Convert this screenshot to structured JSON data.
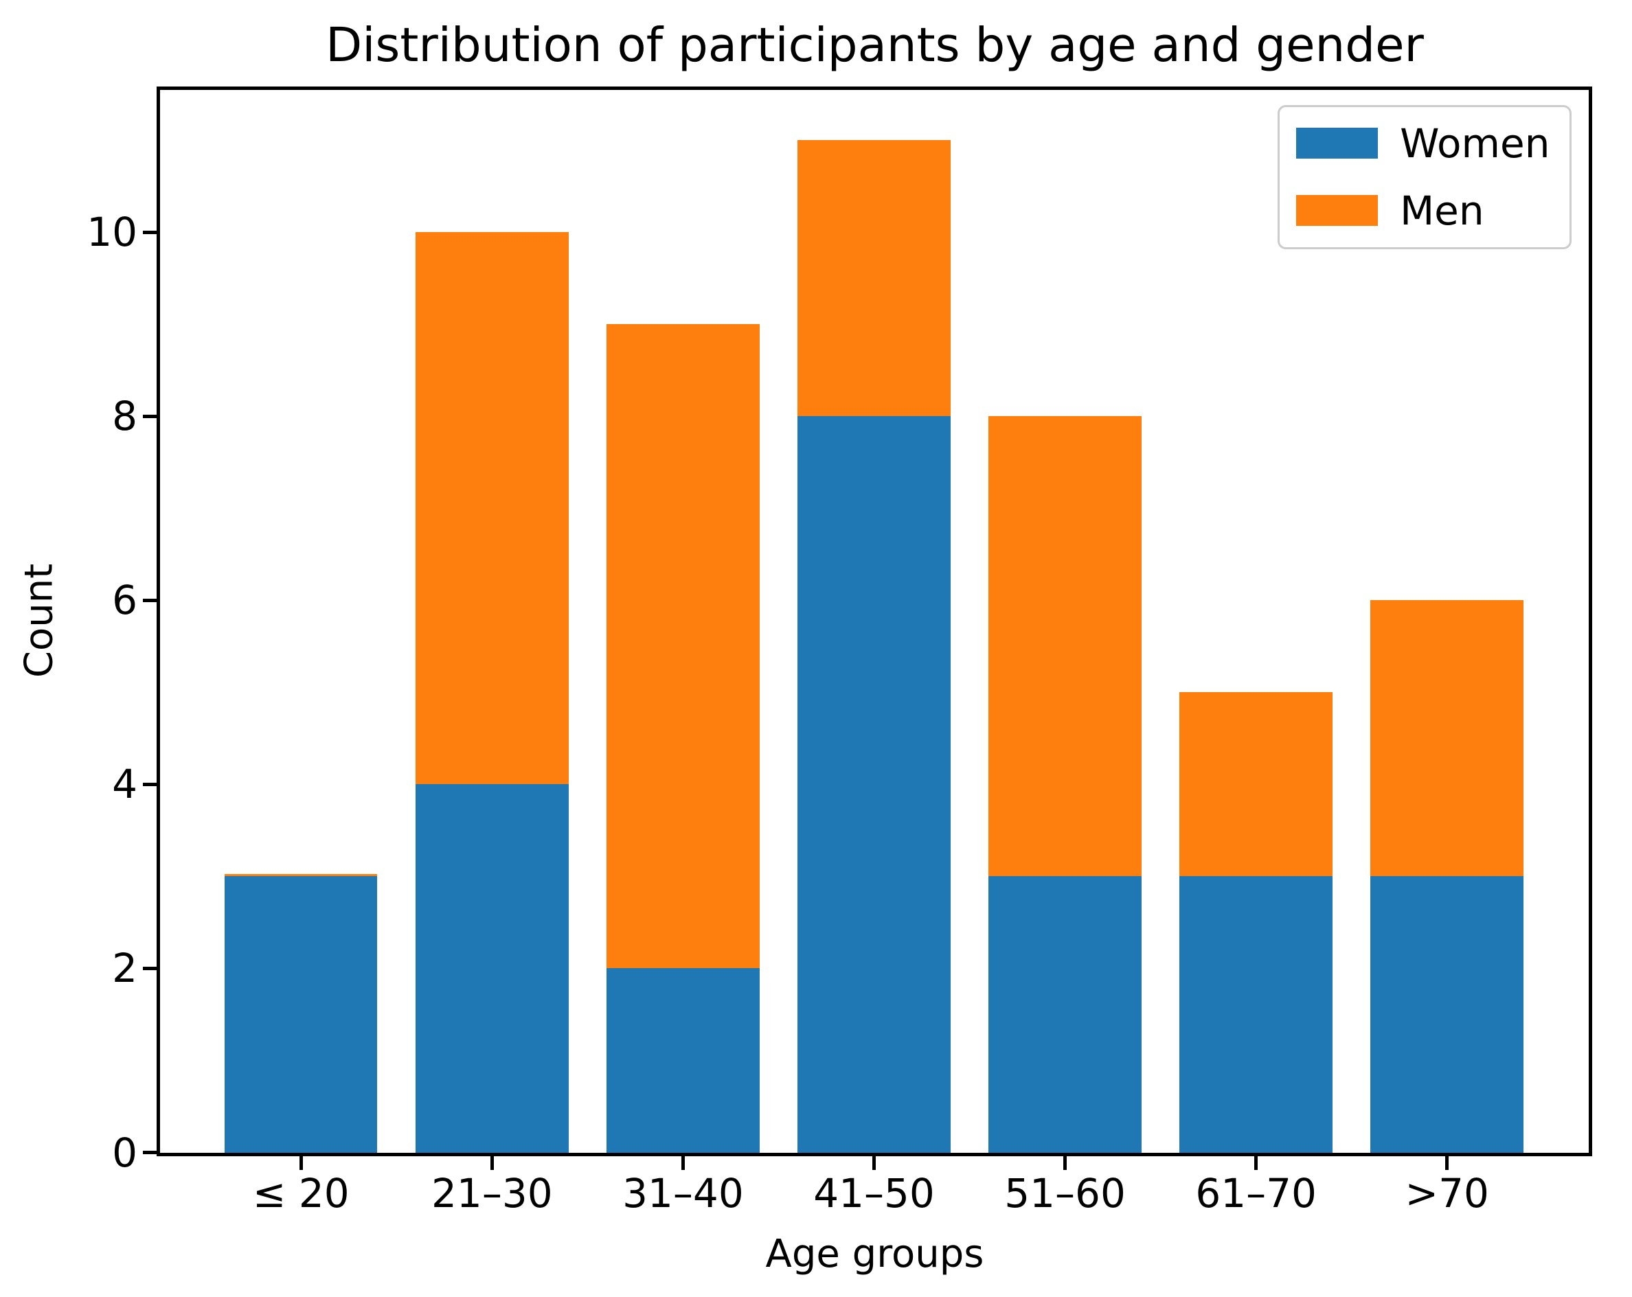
{
  "chart_data": {
    "type": "bar",
    "stacked": true,
    "title": "Distribution of participants by age and gender",
    "xlabel": "Age groups",
    "ylabel": "Count",
    "categories": [
      "≤ 20",
      "21–30",
      "31–40",
      "41–50",
      "51–60",
      "61–70",
      ">70"
    ],
    "series": [
      {
        "name": "Women",
        "color": "#1f77b4",
        "values": [
          3,
          4,
          2,
          8,
          3,
          3,
          3
        ]
      },
      {
        "name": "Men",
        "color": "#ff7f0e",
        "values": [
          0,
          6,
          7,
          3,
          5,
          2,
          3
        ]
      }
    ],
    "totals": [
      3,
      10,
      9,
      11,
      8,
      5,
      6
    ],
    "yticks": [
      0,
      2,
      4,
      6,
      8,
      10
    ],
    "ylim": [
      0,
      11.55
    ],
    "grid": false,
    "legend_position": "upper right",
    "legend_entries": [
      "Women",
      "Men"
    ],
    "axis_color": "#000000",
    "background_color": "#ffffff"
  }
}
